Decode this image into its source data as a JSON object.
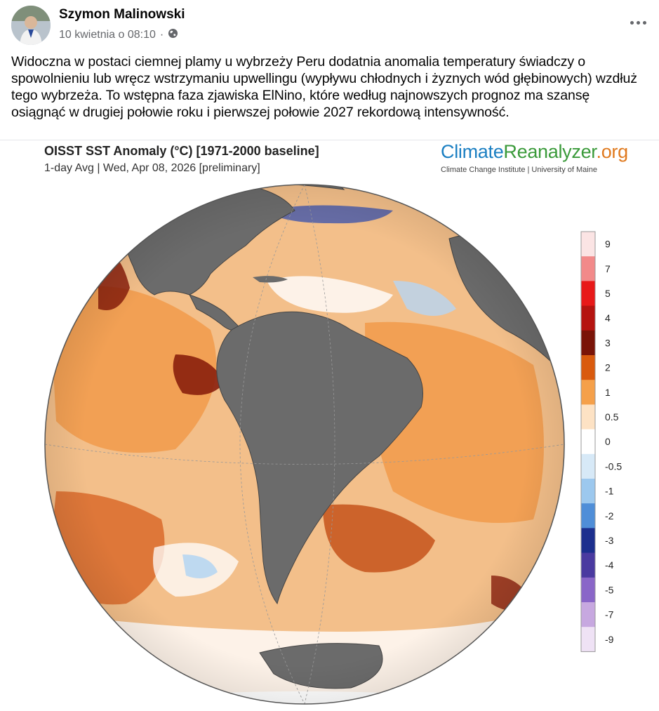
{
  "post": {
    "author": "Szymon Malinowski",
    "timestamp": "10 kwietnia o 08:10",
    "separator": "·",
    "privacy_icon": "globe-icon",
    "more_icon": "more-options-icon",
    "text": "Widoczna w postaci ciemnej plamy u wybrzeży Peru dodatnia anomalia temperatury świadczy o spowolnieniu lub wręcz wstrzymaniu upwellingu (wypływu chłodnych i żyznych wód głębinowych) wzdłuż tego wybrzeża. To wstępna faza zjawiska ElNino, które według najnowszych prognoz ma szansę osiągnąć w drugiej połowie roku i pierwszej połowie 2027 rekordową intensywność."
  },
  "figure": {
    "title": "OISST SST Anomaly (°C) [1971-2000 baseline]",
    "subtitle": "1-day Avg | Wed, Apr 08, 2026 [preliminary]",
    "brand_part1": "Climate",
    "brand_part2": "Reanalyzer",
    "brand_part3": ".org",
    "brand_sub": "Climate Change Institute | University of Maine",
    "colorbar_labels": [
      "9",
      "7",
      "5",
      "4",
      "3",
      "2",
      "1",
      "0.5",
      "0",
      "-0.5",
      "-1",
      "-2",
      "-3",
      "-4",
      "-5",
      "-7",
      "-9"
    ],
    "colorbar_colors": [
      "#fbe4e4",
      "#f28a8a",
      "#e81919",
      "#b51410",
      "#7a1408",
      "#d95a0e",
      "#f5a04a",
      "#fde2c4",
      "#ffffff",
      "#d7e9f7",
      "#9cc8ee",
      "#4f8ed8",
      "#1c2f8e",
      "#4a3aa0",
      "#8a66c8",
      "#c7a8e0",
      "#efe2f5"
    ],
    "colors": {
      "land": "#6b6b6b",
      "warm": "#f5a04a",
      "hot": "#c4521a",
      "very_hot": "#8a1f0c",
      "cool": "#b7d6f2",
      "ocean_base": "#f3bf8a"
    }
  }
}
